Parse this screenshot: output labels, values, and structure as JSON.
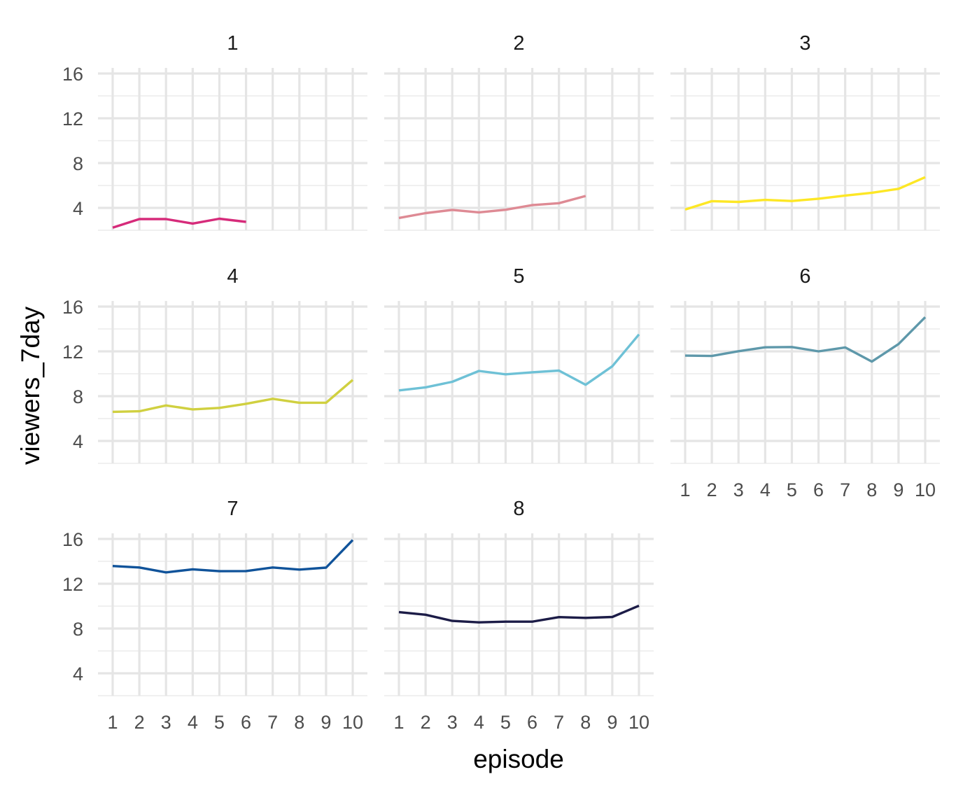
{
  "chart_data": {
    "type": "line",
    "layout": "facet_wrap",
    "ncol": 3,
    "xlabel": "episode",
    "ylabel": "viewers_7day",
    "x_ticks": [
      1,
      2,
      3,
      4,
      5,
      6,
      7,
      8,
      9,
      10
    ],
    "y_ticks": [
      4,
      8,
      12,
      16
    ],
    "xlim": [
      1,
      10
    ],
    "ylim": [
      2,
      16.5
    ],
    "grid": true,
    "legend": "none",
    "facets": [
      {
        "label": "1",
        "color": "#d62b7a",
        "x": [
          1,
          2,
          3,
          4,
          5,
          6
        ],
        "y": [
          2.24,
          3.0,
          3.0,
          2.6,
          3.03,
          2.75
        ]
      },
      {
        "label": "2",
        "color": "#de8a94",
        "x": [
          1,
          2,
          3,
          4,
          5,
          6,
          7,
          8
        ],
        "y": [
          3.1,
          3.53,
          3.82,
          3.6,
          3.83,
          4.25,
          4.42,
          5.06
        ]
      },
      {
        "label": "3",
        "color": "#fde725",
        "x": [
          1,
          2,
          3,
          4,
          5,
          6,
          7,
          8,
          9,
          10
        ],
        "y": [
          3.85,
          4.6,
          4.53,
          4.71,
          4.61,
          4.82,
          5.1,
          5.35,
          5.7,
          6.74
        ]
      },
      {
        "label": "4",
        "color": "#d0d040",
        "x": [
          1,
          2,
          3,
          4,
          5,
          6,
          7,
          8,
          9,
          10
        ],
        "y": [
          6.6,
          6.65,
          7.17,
          6.82,
          6.95,
          7.32,
          7.76,
          7.41,
          7.41,
          9.45
        ]
      },
      {
        "label": "5",
        "color": "#6ec1d6",
        "x": [
          1,
          2,
          3,
          4,
          5,
          6,
          7,
          8,
          9,
          10
        ],
        "y": [
          8.51,
          8.79,
          9.28,
          10.25,
          9.95,
          10.13,
          10.28,
          9.02,
          10.67,
          13.51
        ]
      },
      {
        "label": "6",
        "color": "#5e98aa",
        "x": [
          1,
          2,
          3,
          4,
          5,
          6,
          7,
          8,
          9,
          10
        ],
        "y": [
          11.62,
          11.59,
          12.01,
          12.36,
          12.39,
          12.0,
          12.35,
          11.09,
          12.65,
          15.05
        ]
      },
      {
        "label": "7",
        "color": "#10539a",
        "x": [
          1,
          2,
          3,
          4,
          5,
          6,
          7,
          8,
          9,
          10
        ],
        "y": [
          13.58,
          13.45,
          13.01,
          13.29,
          13.12,
          13.13,
          13.45,
          13.26,
          13.44,
          15.9
        ]
      },
      {
        "label": "8",
        "color": "#1c1c47",
        "x": [
          1,
          2,
          3,
          4,
          5,
          6,
          7,
          8,
          9,
          10
        ],
        "y": [
          9.46,
          9.23,
          8.68,
          8.55,
          8.61,
          8.61,
          9.02,
          8.95,
          9.03,
          10.04
        ]
      }
    ]
  }
}
